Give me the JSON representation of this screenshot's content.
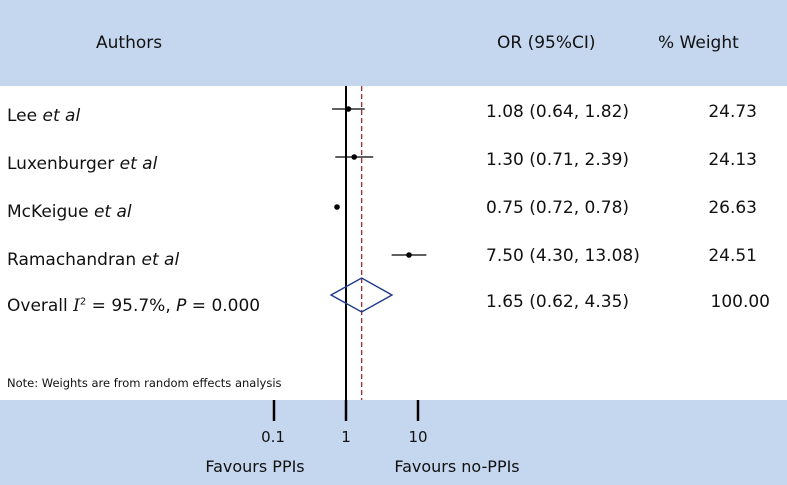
{
  "chart_data": {
    "type": "forest",
    "header": {
      "authors": "Authors",
      "or_ci": "OR (95%CI)",
      "weight": "% Weight"
    },
    "studies": [
      {
        "name": "Lee",
        "suffix": "et al",
        "or": 1.08,
        "lower": 0.64,
        "upper": 1.82,
        "or_text": "1.08 (0.64, 1.82)",
        "weight_text": "24.73"
      },
      {
        "name": "Luxenburger",
        "suffix": "et al",
        "or": 1.3,
        "lower": 0.71,
        "upper": 2.39,
        "or_text": "1.30 (0.71, 2.39)",
        "weight_text": "24.13"
      },
      {
        "name": "McKeigue",
        "suffix": "et al",
        "or": 0.75,
        "lower": 0.72,
        "upper": 0.78,
        "or_text": "0.75 (0.72, 0.78)",
        "weight_text": "26.63"
      },
      {
        "name": "Ramachandran",
        "suffix": "et al",
        "or": 7.5,
        "lower": 4.3,
        "upper": 13.08,
        "or_text": "7.50 (4.30, 13.08)",
        "weight_text": "24.51"
      }
    ],
    "overall": {
      "label_prefix": "Overall ",
      "i2_symbol": "I",
      "i2_sup": "2",
      "i2_text": " = 95.7%, ",
      "p_symbol": "P",
      "p_text": " = 0.000",
      "or": 1.65,
      "lower": 0.62,
      "upper": 4.35,
      "or_text": "1.65 (0.62, 4.35)",
      "weight_text": "100.00"
    },
    "note": "Note: Weights are from random effects analysis",
    "x_scale": "log",
    "x_ticks": [
      {
        "value": 0.1,
        "label": "0.1"
      },
      {
        "value": 1,
        "label": "1"
      },
      {
        "value": 10,
        "label": "10"
      }
    ],
    "favours_left": "Favours PPIs",
    "favours_right": "Favours no-PPIs",
    "colors": {
      "band": "#c5d7ef",
      "diamond": "#1f3a8a",
      "overall_line": "#a52a2a",
      "lines": "#000000"
    }
  }
}
